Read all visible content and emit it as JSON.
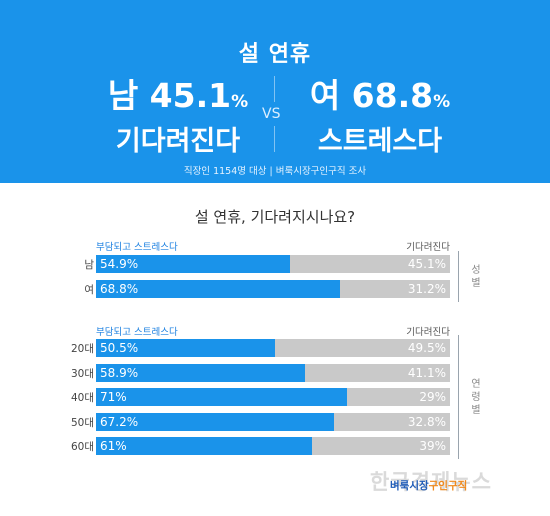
{
  "header": {
    "title": "설 연휴",
    "left": {
      "line1": "남 45.1",
      "unit": "%",
      "line2": "기다려진다"
    },
    "vs": "VS",
    "right": {
      "line1": "여 68.8",
      "unit": "%",
      "line2": "스트레스다"
    },
    "source": "직장인 1154명 대상  |  벼룩시장구인구직 조사"
  },
  "question": "설 연휴, 기다려지시나요?",
  "colors": {
    "primary": "#1a93ea",
    "secondary": "#c9c9c9",
    "header_bg": "#1a93ea"
  },
  "chart_data": [
    {
      "type": "bar",
      "orientation": "horizontal",
      "stacked": true,
      "group": "성별",
      "legend_left": "부담되고 스트레스다",
      "legend_right": "기다려진다",
      "categories": [
        "남",
        "여"
      ],
      "series": [
        {
          "name": "부담되고 스트레스다",
          "values": [
            54.9,
            68.8
          ],
          "labels": [
            "54.9%",
            "68.8%"
          ]
        },
        {
          "name": "기다려진다",
          "values": [
            45.1,
            31.2
          ],
          "labels": [
            "45.1%",
            "31.2%"
          ]
        }
      ],
      "xlim": [
        0,
        100
      ]
    },
    {
      "type": "bar",
      "orientation": "horizontal",
      "stacked": true,
      "group": "연령별",
      "legend_left": "부담되고 스트레스다",
      "legend_right": "기다려진다",
      "categories": [
        "20대",
        "30대",
        "40대",
        "50대",
        "60대"
      ],
      "series": [
        {
          "name": "부담되고 스트레스다",
          "values": [
            50.5,
            58.9,
            71,
            67.2,
            61
          ],
          "labels": [
            "50.5%",
            "58.9%",
            "71%",
            "67.2%",
            "61%"
          ]
        },
        {
          "name": "기다려진다",
          "values": [
            49.5,
            41.1,
            29,
            32.8,
            39
          ],
          "labels": [
            "49.5%",
            "41.1%",
            "29%",
            "32.8%",
            "39%"
          ]
        }
      ],
      "xlim": [
        0,
        100
      ]
    }
  ],
  "logo": {
    "part1": "벼룩시장",
    "part2": "구인구직"
  },
  "watermark": "한국경제뉴스"
}
